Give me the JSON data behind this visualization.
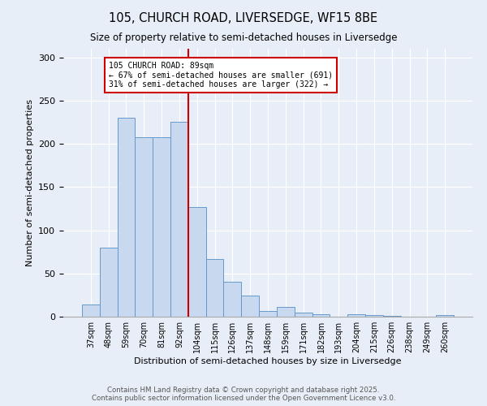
{
  "title1": "105, CHURCH ROAD, LIVERSEDGE, WF15 8BE",
  "title2": "Size of property relative to semi-detached houses in Liversedge",
  "xlabel": "Distribution of semi-detached houses by size in Liversedge",
  "ylabel": "Number of semi-detached properties",
  "categories": [
    "37sqm",
    "48sqm",
    "59sqm",
    "70sqm",
    "81sqm",
    "92sqm",
    "104sqm",
    "115sqm",
    "126sqm",
    "137sqm",
    "148sqm",
    "159sqm",
    "171sqm",
    "182sqm",
    "193sqm",
    "204sqm",
    "215sqm",
    "226sqm",
    "238sqm",
    "249sqm",
    "260sqm"
  ],
  "values": [
    14,
    80,
    230,
    208,
    208,
    225,
    127,
    67,
    40,
    24,
    7,
    11,
    5,
    3,
    0,
    3,
    2,
    1,
    0,
    0,
    2
  ],
  "bar_color": "#c8d9ef",
  "bar_edge_color": "#6699cc",
  "ref_line_index": 5,
  "annotation_title": "105 CHURCH ROAD: 89sqm",
  "annotation_line1": "← 67% of semi-detached houses are smaller (691)",
  "annotation_line2": "31% of semi-detached houses are larger (322) →",
  "annotation_box_facecolor": "#ffffff",
  "annotation_box_edgecolor": "#cc0000",
  "ref_line_color": "#cc0000",
  "ylim": [
    0,
    310
  ],
  "yticks": [
    0,
    50,
    100,
    150,
    200,
    250,
    300
  ],
  "footnote1": "Contains HM Land Registry data © Crown copyright and database right 2025.",
  "footnote2": "Contains public sector information licensed under the Open Government Licence v3.0.",
  "bg_color": "#e8eef7"
}
